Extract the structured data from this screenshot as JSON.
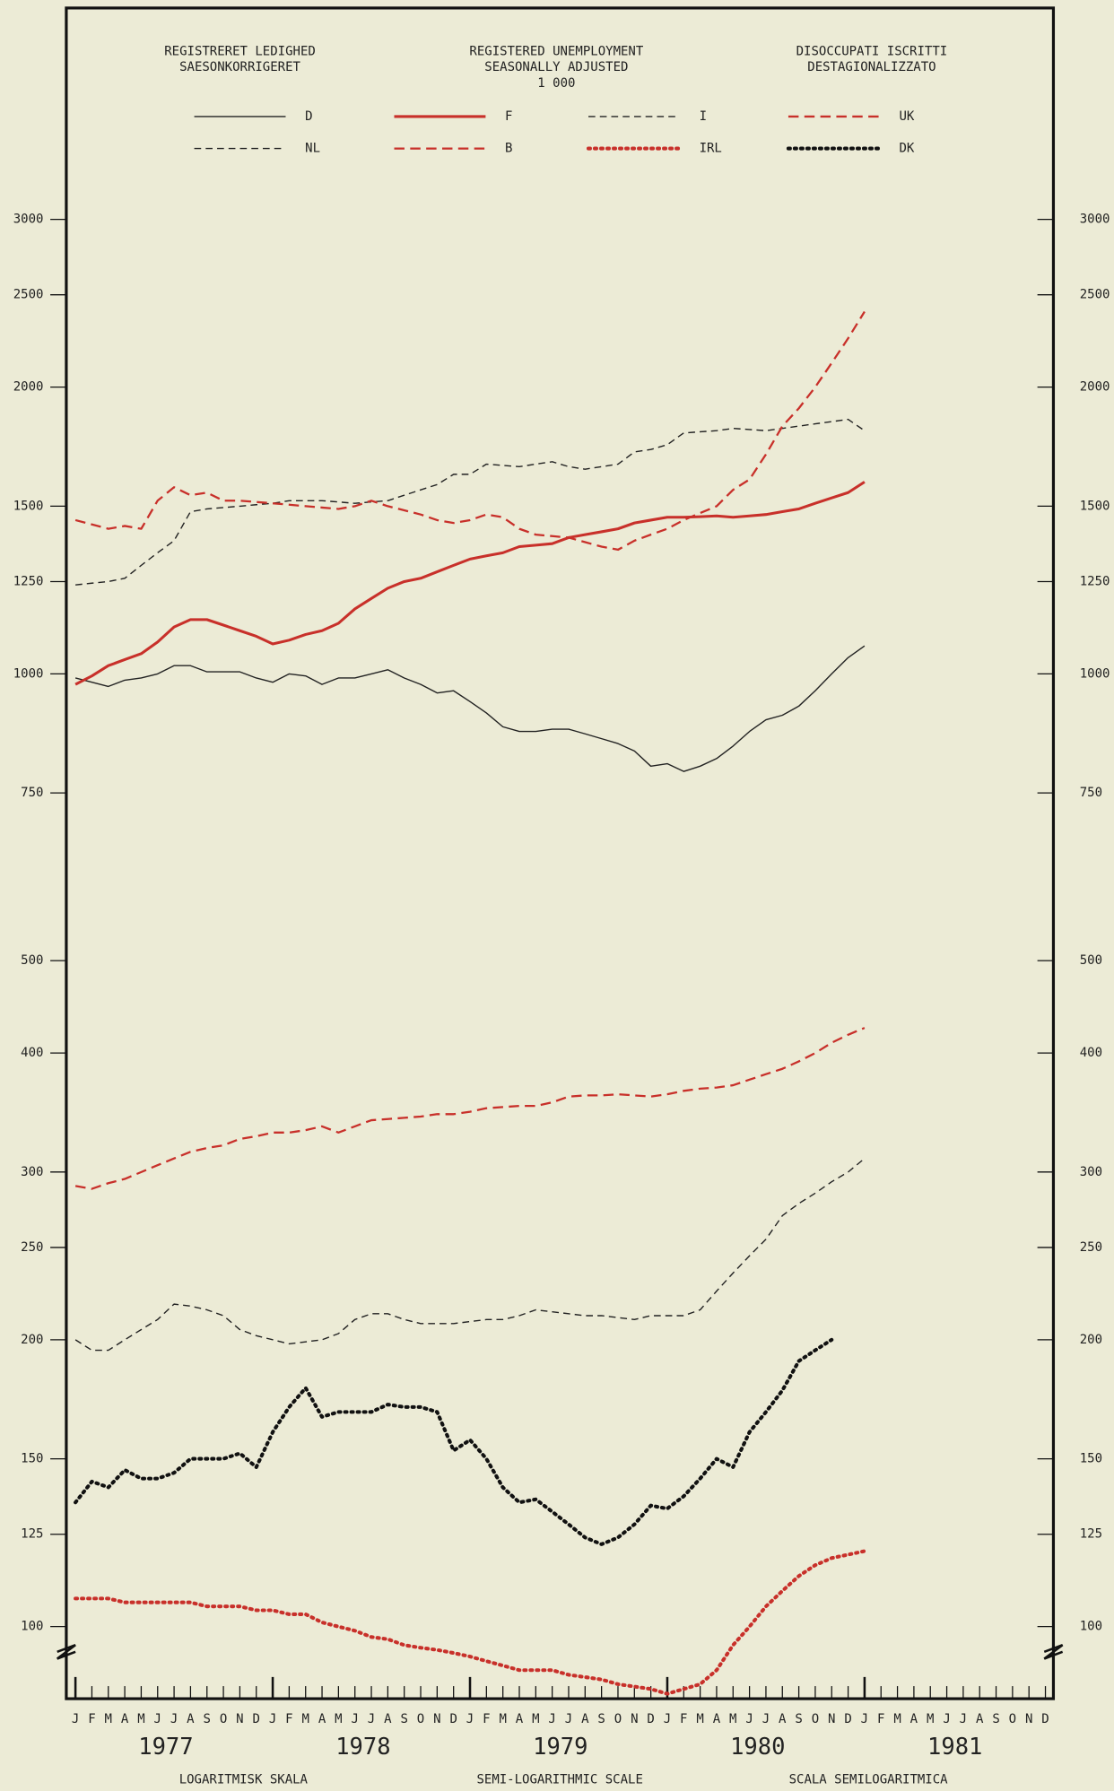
{
  "chart_data": {
    "type": "line",
    "titles": [
      [
        "REGISTRERET LEDIGHED",
        "SAESONKORRIGERET"
      ],
      [
        "REGISTERED UNEMPLOYMENT",
        "SEASONALLY ADJUSTED",
        "1 000"
      ],
      [
        "DISOCCUPATI ISCRITTI",
        "DESTAGIONALIZZATO"
      ]
    ],
    "scale_labels": [
      "LOGARITMISK SKALA",
      "SEMI-LOGARITHMIC SCALE",
      "SCALA SEMILOGARITMICA"
    ],
    "years": [
      "1977",
      "1978",
      "1979",
      "1980",
      "1981"
    ],
    "categories": [
      "J",
      "F",
      "M",
      "A",
      "M",
      "J",
      "J",
      "A",
      "S",
      "O",
      "N",
      "D",
      "J",
      "F",
      "M",
      "A",
      "M",
      "J",
      "J",
      "A",
      "S",
      "O",
      "N",
      "D",
      "J",
      "F",
      "M",
      "A",
      "M",
      "J",
      "J",
      "A",
      "S",
      "O",
      "N",
      "D",
      "J",
      "F",
      "M",
      "A",
      "M",
      "J",
      "J",
      "A",
      "S",
      "O",
      "N",
      "D",
      "J",
      "F",
      "M",
      "A",
      "M",
      "J",
      "J",
      "A",
      "S",
      "O",
      "N",
      "D"
    ],
    "log_scale": true,
    "ylim": [
      84,
      5000
    ],
    "yticks": [
      100,
      125,
      150,
      200,
      250,
      300,
      400,
      500,
      750,
      1000,
      1250,
      1500,
      2000,
      2500,
      3000
    ],
    "series": [
      {
        "name": "D",
        "color": "#222222",
        "style": "solid",
        "values": [
          990,
          980,
          970,
          985,
          990,
          1000,
          1020,
          1020,
          1005,
          1005,
          1005,
          990,
          980,
          1000,
          995,
          975,
          990,
          990,
          1000,
          1010,
          990,
          975,
          955,
          960,
          935,
          910,
          880,
          870,
          870,
          875,
          875,
          865,
          855,
          845,
          830,
          800,
          805,
          790,
          800,
          815,
          840,
          870,
          895,
          905,
          925,
          960,
          1000,
          1040,
          1070,
          null,
          null,
          null,
          null,
          null,
          null,
          null,
          null,
          null,
          null,
          null
        ]
      },
      {
        "name": "F",
        "color": "#c8302a",
        "style": "solid",
        "values": [
          975,
          995,
          1020,
          1035,
          1050,
          1080,
          1120,
          1140,
          1140,
          1125,
          1110,
          1095,
          1075,
          1085,
          1100,
          1110,
          1130,
          1170,
          1200,
          1230,
          1250,
          1260,
          1280,
          1300,
          1320,
          1330,
          1340,
          1360,
          1365,
          1370,
          1390,
          1400,
          1410,
          1420,
          1440,
          1450,
          1460,
          1460,
          1462,
          1465,
          1460,
          1465,
          1470,
          1480,
          1490,
          1510,
          1530,
          1550,
          1590,
          null,
          null,
          null,
          null,
          null,
          null,
          null,
          null,
          null,
          null,
          null
        ]
      },
      {
        "name": "I",
        "color": "#222222",
        "style": "dashed",
        "values": [
          1240,
          1245,
          1250,
          1260,
          1300,
          1340,
          1380,
          1480,
          1490,
          1495,
          1500,
          1505,
          1510,
          1520,
          1520,
          1520,
          1515,
          1510,
          1515,
          1520,
          1540,
          1560,
          1580,
          1620,
          1620,
          1660,
          1655,
          1650,
          1660,
          1670,
          1650,
          1640,
          1650,
          1660,
          1710,
          1720,
          1740,
          1790,
          1795,
          1800,
          1810,
          1805,
          1800,
          1810,
          1820,
          1830,
          1840,
          1850,
          1800,
          null,
          null,
          null,
          null,
          null,
          null,
          null,
          null,
          null,
          null,
          null
        ]
      },
      {
        "name": "UK",
        "color": "#c8302a",
        "style": "dashed",
        "values": [
          1450,
          1435,
          1420,
          1430,
          1420,
          1520,
          1570,
          1540,
          1550,
          1520,
          1520,
          1515,
          1510,
          1505,
          1500,
          1495,
          1490,
          1500,
          1520,
          1500,
          1485,
          1470,
          1450,
          1440,
          1450,
          1470,
          1460,
          1420,
          1400,
          1395,
          1390,
          1375,
          1360,
          1350,
          1380,
          1400,
          1420,
          1450,
          1475,
          1500,
          1560,
          1600,
          1700,
          1820,
          1900,
          2000,
          2120,
          2250,
          2400,
          null,
          null,
          null,
          null,
          null,
          null,
          null,
          null,
          null,
          null,
          null
        ]
      },
      {
        "name": "NL",
        "color": "#222222",
        "style": "dashed",
        "values": [
          200,
          195,
          195,
          200,
          205,
          210,
          218,
          217,
          215,
          212,
          205,
          202,
          200,
          198,
          199,
          200,
          203,
          210,
          213,
          213,
          210,
          208,
          208,
          208,
          209,
          210,
          210,
          212,
          215,
          214,
          213,
          212,
          212,
          211,
          210,
          212,
          212,
          212,
          215,
          225,
          235,
          245,
          255,
          270,
          278,
          285,
          293,
          300,
          310,
          null,
          null,
          null,
          null,
          null,
          null,
          null,
          null,
          null,
          null,
          null
        ]
      },
      {
        "name": "B",
        "color": "#c8302a",
        "style": "dashed",
        "values": [
          290,
          288,
          292,
          295,
          300,
          305,
          310,
          315,
          318,
          320,
          325,
          327,
          330,
          330,
          332,
          335,
          330,
          335,
          340,
          341,
          342,
          343,
          345,
          345,
          347,
          350,
          351,
          352,
          352,
          355,
          360,
          361,
          361,
          362,
          361,
          360,
          362,
          365,
          367,
          368,
          370,
          375,
          380,
          385,
          392,
          400,
          410,
          418,
          425,
          null,
          null,
          null,
          null,
          null,
          null,
          null,
          null,
          null,
          null,
          null
        ]
      },
      {
        "name": "IRL",
        "color": "#c8302a",
        "style": "dotted",
        "values": [
          107,
          107,
          107,
          106,
          106,
          106,
          106,
          106,
          105,
          105,
          105,
          104,
          104,
          103,
          103,
          101,
          100,
          99,
          97.5,
          97,
          95.6,
          95,
          94.5,
          93.8,
          93,
          92,
          91,
          90,
          90,
          90,
          89,
          88.5,
          88,
          87,
          86.5,
          86,
          85,
          86,
          87,
          90,
          95.6,
          100,
          105,
          109,
          113,
          116,
          118,
          119,
          120,
          null,
          null,
          null,
          null,
          null,
          null,
          null,
          null,
          null,
          null,
          null
        ]
      },
      {
        "name": "DK",
        "color": "#111111",
        "style": "dotted",
        "values": [
          135,
          142,
          140,
          146,
          143,
          143,
          145,
          150,
          150,
          150,
          152,
          147,
          160,
          170,
          178,
          166,
          168,
          168,
          168,
          171,
          170,
          170,
          168,
          153,
          157,
          150,
          140,
          135,
          136,
          132,
          128,
          124,
          122,
          124,
          128,
          134,
          133,
          137,
          143,
          150,
          147,
          160,
          168,
          177,
          190,
          195,
          200,
          null,
          null,
          null,
          null,
          null,
          null,
          null,
          null,
          null,
          null,
          null,
          null,
          null
        ]
      }
    ]
  }
}
